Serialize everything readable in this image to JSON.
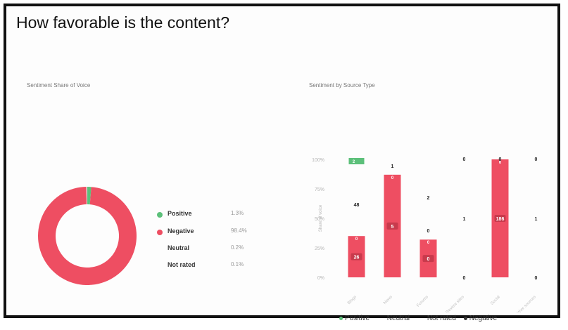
{
  "title": "How favorable is the content?",
  "colors": {
    "positive": "#5cc07a",
    "negative": "#ee4e62",
    "neutral": "#d9d9d9",
    "not_rated": "#f2f2f2"
  },
  "chart_data": [
    {
      "type": "pie",
      "title": "Sentiment Share of Voice",
      "donut": true,
      "slices": [
        {
          "label": "Positive",
          "value": 1.3,
          "display": "1.3%",
          "color": "#5cc07a"
        },
        {
          "label": "Negative",
          "value": 98.4,
          "display": "98.4%",
          "color": "#ee4e62"
        },
        {
          "label": "Neutral",
          "value": 0.2,
          "display": "0.2%",
          "color": "#d9d9d9"
        },
        {
          "label": "Not rated",
          "value": 0.1,
          "display": "0.1%",
          "color": "#f2f2f2"
        }
      ]
    },
    {
      "type": "bar",
      "stacked": true,
      "title": "Sentiment by Source Type",
      "ylabel": "Share of voice",
      "ylim": [
        0,
        100
      ],
      "yticks": [
        "100%",
        "75%",
        "50%",
        "25%",
        "0%"
      ],
      "categories": [
        "Blogs",
        "News",
        "Forums",
        "Review sites",
        "Social",
        "Other sources"
      ],
      "series": [
        {
          "name": "Negative",
          "color": "#ee4e62",
          "values": [
            35,
            87,
            32,
            0,
            100,
            0
          ],
          "labels": [
            "26",
            "5",
            "0",
            "",
            "186",
            ""
          ]
        },
        {
          "name": "Positive",
          "color": "#5cc07a",
          "values": [
            2,
            0,
            0,
            0,
            0,
            0
          ],
          "labels": [
            "2",
            "",
            "",
            "",
            "",
            ""
          ]
        }
      ],
      "top_labels": [
        "",
        "1",
        "0",
        "0",
        "0",
        "0"
      ],
      "neg_top_labels": [
        "0",
        "0",
        "0",
        "",
        "0",
        ""
      ],
      "mid_labels": [
        {
          "index": 0,
          "y": 62,
          "text": "48"
        },
        {
          "index": 2,
          "y": 68,
          "text": "2"
        },
        {
          "index": 3,
          "y": 50,
          "text": "1"
        },
        {
          "index": 5,
          "y": 50,
          "text": "1"
        },
        {
          "index": 3,
          "y": 0,
          "text": "0"
        },
        {
          "index": 5,
          "y": 0,
          "text": "0"
        }
      ],
      "legend": [
        "Positive",
        "Neutral",
        "Not rated",
        "Negative"
      ],
      "legend_placement": "bottom"
    }
  ]
}
